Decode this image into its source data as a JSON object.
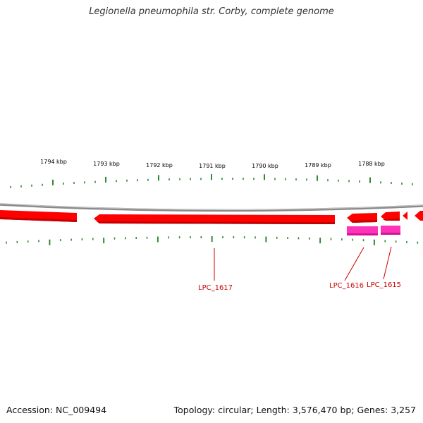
{
  "title": "Legionella pneumophila str. Corby, complete genome",
  "footer": {
    "accession": "Accession: NC_009494",
    "info": "Topology: circular; Length: 3,576,470 bp; Genes: 3,257"
  },
  "colors": {
    "backbone": "#8a8a8a",
    "cds": "#ff0000",
    "cds_dark": "#c40000",
    "rna": "#ff33bb",
    "tick": "#2e8b2e",
    "label": "#cc0000"
  },
  "scale_labels": [
    "1794 kbp",
    "1793 kbp",
    "1792 kbp",
    "1791 kbp",
    "1790 kbp",
    "1789 kbp",
    "1788 kbp"
  ],
  "genes": [
    {
      "label": "LPC_1617",
      "type": "CDS"
    },
    {
      "label": "LPC_1616",
      "type": "CDS"
    },
    {
      "label": "LPC_1615",
      "type": "CDS"
    }
  ]
}
